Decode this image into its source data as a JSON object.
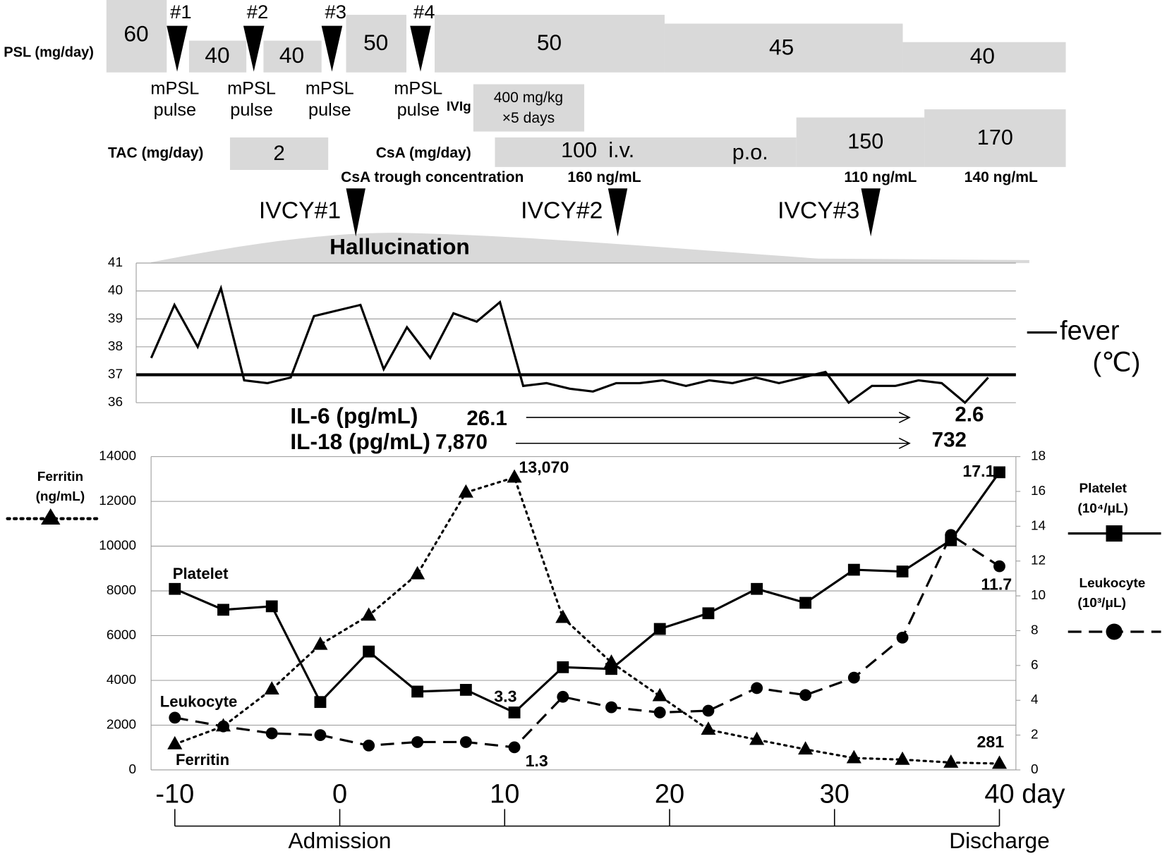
{
  "timeline": {
    "psl": {
      "label": "PSL (mg/day)",
      "doses": [
        60,
        40,
        40,
        50,
        50,
        45,
        40
      ]
    },
    "pulses": [
      {
        "number": "#1",
        "label": "mPSL",
        "sub": "pulse"
      },
      {
        "number": "#2",
        "label": "mPSL",
        "sub": "pulse"
      },
      {
        "number": "#3",
        "label": "mPSL",
        "sub": "pulse"
      },
      {
        "number": "#4",
        "label": "mPSL",
        "sub": "pulse"
      }
    ],
    "ivig": {
      "label": "IVIg",
      "dose": "400 mg/kg",
      "duration": "×5 days"
    },
    "tac": {
      "label": "TAC (mg/day)",
      "dose": 2
    },
    "csa": {
      "label": "CsA (mg/day)",
      "doses": [
        100,
        150,
        170
      ],
      "routes": [
        "i.v.",
        "p.o."
      ]
    },
    "csa_trough": {
      "label": "CsA trough concentration",
      "values": [
        "160 ng/mL",
        "110 ng/mL",
        "140 ng/mL"
      ]
    },
    "ivcy": [
      "IVCY#1",
      "IVCY#2",
      "IVCY#3"
    ],
    "hallucination": "Hallucination"
  },
  "cytokines": [
    {
      "label": "IL-6 (pg/mL)",
      "start": "26.1",
      "end": "2.6"
    },
    {
      "label": "IL-18 (pg/mL)",
      "start": "7,870",
      "end": "732"
    }
  ],
  "chart_data": [
    {
      "type": "line",
      "x": [
        -11.44,
        -10.03,
        -8.62,
        -7.21,
        -5.8,
        -4.39,
        -2.98,
        -1.57,
        -0.16,
        1.25,
        2.66,
        4.07,
        5.48,
        6.89,
        8.3,
        9.71,
        11.12,
        12.53,
        13.94,
        15.35,
        16.76,
        18.17,
        19.58,
        20.99,
        22.4,
        23.81,
        25.22,
        26.63,
        28.04,
        29.45,
        30.86,
        32.27,
        33.68,
        35.09,
        36.5,
        37.91,
        39.32
      ],
      "xlim": [
        -12.35,
        41
      ],
      "ylim": [
        36,
        41
      ],
      "yticks": [
        36,
        37,
        38,
        39,
        40,
        41
      ],
      "grid": true,
      "reference_line": 37,
      "series": [
        {
          "name": "fever",
          "unit": "(℃)",
          "color": "#000000",
          "values": [
            37.6,
            39.5,
            38.0,
            40.1,
            36.8,
            36.7,
            36.9,
            39.1,
            39.3,
            39.5,
            37.2,
            38.7,
            37.6,
            39.2,
            38.9,
            39.6,
            36.6,
            36.7,
            36.5,
            36.4,
            36.7,
            36.7,
            36.8,
            36.6,
            36.8,
            36.7,
            36.9,
            36.7,
            36.9,
            37.1,
            36.0,
            36.6,
            36.6,
            36.8,
            36.7,
            36.0,
            36.9
          ]
        }
      ]
    },
    {
      "type": "line",
      "x": [
        -10,
        -7.06,
        -4.12,
        -1.18,
        1.76,
        4.71,
        7.65,
        10.59,
        13.53,
        16.47,
        19.41,
        22.35,
        25.29,
        28.24,
        31.18,
        34.12,
        37.06,
        40
      ],
      "xlim": [
        -11.44,
        41
      ],
      "xticks": [
        -10,
        0,
        10,
        20,
        30,
        40
      ],
      "xlabel": "day",
      "ylim": [
        0,
        14000
      ],
      "yticks": [
        0,
        2000,
        4000,
        6000,
        8000,
        10000,
        12000,
        14000
      ],
      "y2lim": [
        0,
        18
      ],
      "y2ticks": [
        0,
        2,
        4,
        6,
        8,
        10,
        12,
        14,
        16,
        18
      ],
      "grid": true,
      "series": [
        {
          "name": "Ferritin",
          "unit": "(ng/mL)",
          "color": "#000000",
          "dash": "dotted",
          "marker": "triangle",
          "values": [
            1150,
            1950,
            3600,
            5600,
            6900,
            8750,
            12400,
            13070,
            6800,
            4800,
            3300,
            1800,
            1350,
            920,
            530,
            460,
            330,
            281
          ],
          "value_labels": [
            null,
            null,
            null,
            null,
            null,
            null,
            null,
            "13,070",
            null,
            null,
            null,
            null,
            null,
            null,
            null,
            null,
            null,
            "281"
          ]
        },
        {
          "name": "Platelet",
          "unit": "(10⁴/μL)",
          "color": "#000000",
          "dash": "solid",
          "marker": "square",
          "axis": "y2",
          "values": [
            10.4,
            9.2,
            9.4,
            3.9,
            6.8,
            4.5,
            4.6,
            3.3,
            5.9,
            5.8,
            8.1,
            9.0,
            10.4,
            9.6,
            11.5,
            11.4,
            13.2,
            17.1
          ],
          "value_labels": [
            null,
            null,
            null,
            null,
            null,
            null,
            null,
            "3.3",
            null,
            null,
            null,
            null,
            null,
            null,
            null,
            null,
            null,
            "17.1"
          ]
        },
        {
          "name": "Leukocyte",
          "unit": "(10³/μL)",
          "color": "#000000",
          "dash": "dashed",
          "marker": "circle",
          "axis": "y2",
          "values": [
            3.0,
            2.5,
            2.1,
            2.0,
            1.4,
            1.6,
            1.6,
            1.3,
            4.2,
            3.6,
            3.3,
            3.4,
            4.7,
            4.3,
            5.3,
            7.6,
            13.5,
            11.7
          ],
          "value_labels": [
            null,
            null,
            null,
            null,
            null,
            null,
            null,
            "1.3",
            null,
            null,
            null,
            null,
            null,
            null,
            null,
            null,
            null,
            "11.7"
          ]
        }
      ],
      "milestones": [
        {
          "x": 0,
          "label": "Admission"
        },
        {
          "x": 40,
          "label": "Discharge"
        }
      ]
    }
  ]
}
